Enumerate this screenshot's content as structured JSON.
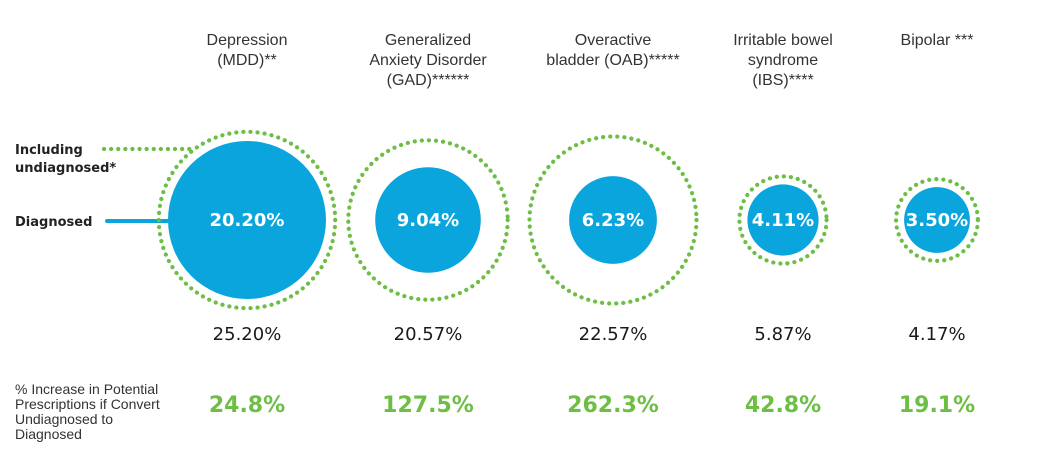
{
  "chart_data": {
    "type": "bubble",
    "legend": {
      "including": [
        "Including",
        "undiagnosed*"
      ],
      "diagnosed": "Diagnosed"
    },
    "row_label": [
      "% Increase in Potential",
      "Prescriptions if Convert",
      "Undiagnosed to",
      "Diagnosed"
    ],
    "conditions": [
      {
        "title": [
          "Depression",
          "(MDD)**"
        ],
        "diagnosed": 20.2,
        "diagnosed_label": "20.20%",
        "total": 25.2,
        "total_label": "25.20%",
        "increase_label": "24.8%"
      },
      {
        "title": [
          "Generalized",
          "Anxiety Disorder",
          "(GAD)******"
        ],
        "diagnosed": 9.04,
        "diagnosed_label": "9.04%",
        "total": 20.57,
        "total_label": "20.57%",
        "increase_label": "127.5%"
      },
      {
        "title": [
          "Overactive",
          "bladder (OAB)*****"
        ],
        "diagnosed": 6.23,
        "diagnosed_label": "6.23%",
        "total": 22.57,
        "total_label": "22.57%",
        "increase_label": "262.3%"
      },
      {
        "title": [
          "Irritable bowel",
          "syndrome",
          "(IBS)****"
        ],
        "diagnosed": 4.11,
        "diagnosed_label": "4.11%",
        "total": 5.87,
        "total_label": "5.87%",
        "increase_label": "42.8%"
      },
      {
        "title": [
          "Bipolar ***"
        ],
        "diagnosed": 3.5,
        "diagnosed_label": "3.50%",
        "total": 4.17,
        "total_label": "4.17%",
        "increase_label": "19.1%"
      }
    ],
    "colors": {
      "diagnosed": "#0aa5dc",
      "undiagnosed_ring": "#6cbe45",
      "increase_text": "#6cbe45"
    }
  }
}
